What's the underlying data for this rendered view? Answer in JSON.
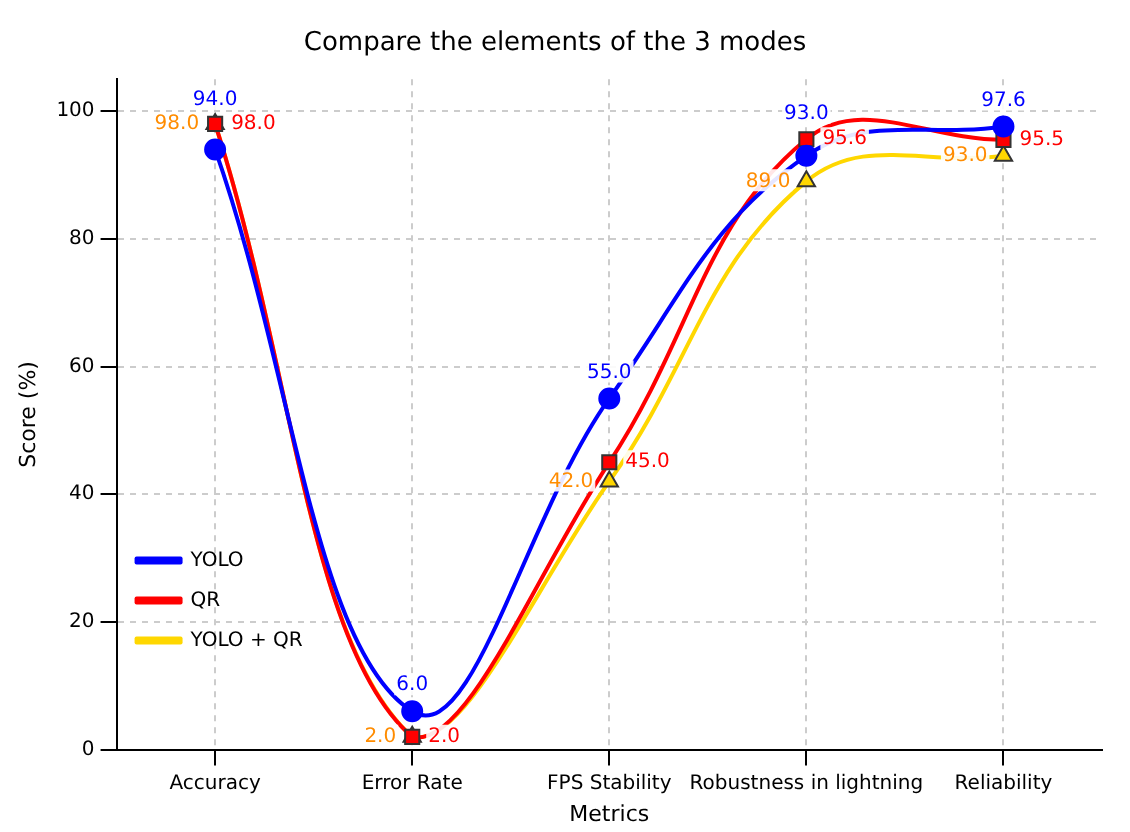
{
  "chart_data": {
    "type": "line",
    "title": "Compare the elements of the 3 modes",
    "xlabel": "Metrics",
    "ylabel": "Score (%)",
    "categories": [
      "Accuracy",
      "Error Rate",
      "FPS Stability",
      "Robustness in lightning",
      "Reliability"
    ],
    "series": [
      {
        "name": "YOLO",
        "color": "#0000ff",
        "marker": "circle",
        "values": [
          94.0,
          6.0,
          55.0,
          93.0,
          97.6
        ],
        "value_labels": [
          "94.0",
          "6.0",
          "55.0",
          "93.0",
          "97.6"
        ]
      },
      {
        "name": "QR",
        "color": "#ff0000",
        "marker": "square",
        "values": [
          98.0,
          2.0,
          45.0,
          95.6,
          95.5
        ],
        "value_labels": [
          "98.0",
          "2.0",
          "45.0",
          "95.6",
          "95.5"
        ]
      },
      {
        "name": "YOLO + QR",
        "color": "#ffd700",
        "marker": "triangle",
        "values": [
          98.0,
          2.0,
          42.0,
          89.0,
          93.0
        ],
        "value_labels": [
          "98.0",
          "2.0",
          "42.0",
          "89.0",
          "93.0"
        ]
      }
    ],
    "ylim": [
      0,
      105
    ],
    "yticks": [
      0,
      20,
      40,
      60,
      80,
      100
    ],
    "grid": true,
    "legend": "bottom left"
  }
}
